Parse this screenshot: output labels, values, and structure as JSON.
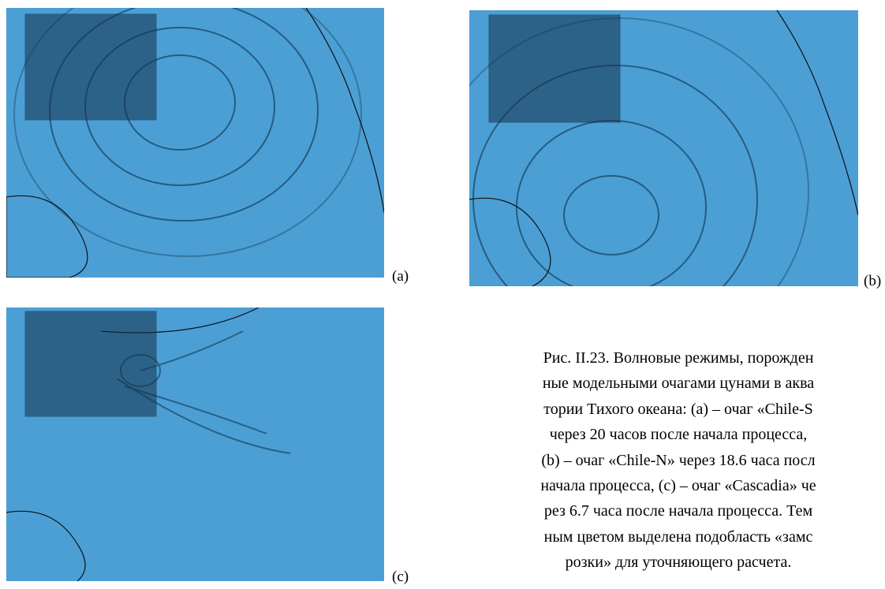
{
  "figures": [
    {
      "label": "(a)"
    },
    {
      "label": "(b)"
    },
    {
      "label": "(c)"
    }
  ],
  "caption": {
    "lines": [
      "Рис. II.23. Волновые режимы, порожден",
      "ные модельными очагами цунами в аква",
      "тории Тихого океана: (а) – очаг «Chile-S",
      "через 20 часов после начала процесса,",
      "(b) – очаг «Chile-N» через 18.6 часа посл",
      "начала процесса, (c) – очаг «Cascadia» че",
      "рез 6.7 часа после начала процесса. Тем",
      "ным цветом выделена подобласть «замс",
      "розки» для уточняющего расчета."
    ]
  }
}
